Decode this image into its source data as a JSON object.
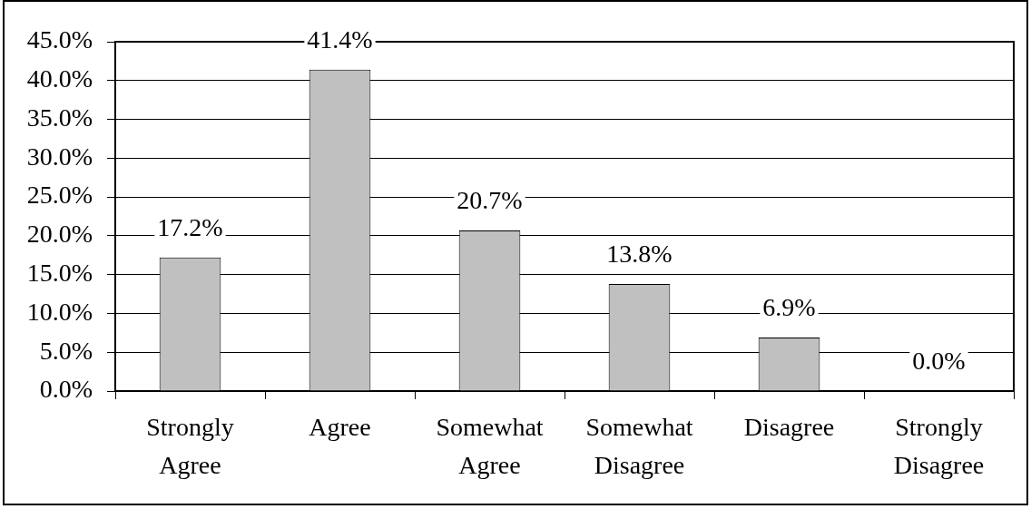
{
  "chart_data": {
    "type": "bar",
    "categories": [
      "Strongly Agree",
      "Agree",
      "Somewhat Agree",
      "Somewhat Disagree",
      "Disagree",
      "Strongly Disagree"
    ],
    "values": [
      17.2,
      41.4,
      20.7,
      13.8,
      6.9,
      0.0
    ],
    "value_labels": [
      "17.2%",
      "41.4%",
      "20.7%",
      "13.8%",
      "6.9%",
      "0.0%"
    ],
    "color": "#c0c0c0",
    "ylim": [
      0,
      45
    ],
    "yticks": [
      {
        "value": 0,
        "label": "0.0%"
      },
      {
        "value": 5,
        "label": "5.0%"
      },
      {
        "value": 10,
        "label": "10.0%"
      },
      {
        "value": 15,
        "label": "15.0%"
      },
      {
        "value": 20,
        "label": "20.0%"
      },
      {
        "value": 25,
        "label": "25.0%"
      },
      {
        "value": 30,
        "label": "30.0%"
      },
      {
        "value": 35,
        "label": "35.0%"
      },
      {
        "value": 40,
        "label": "40.0%"
      },
      {
        "value": 45,
        "label": "45.0%"
      }
    ],
    "grid": "y"
  }
}
